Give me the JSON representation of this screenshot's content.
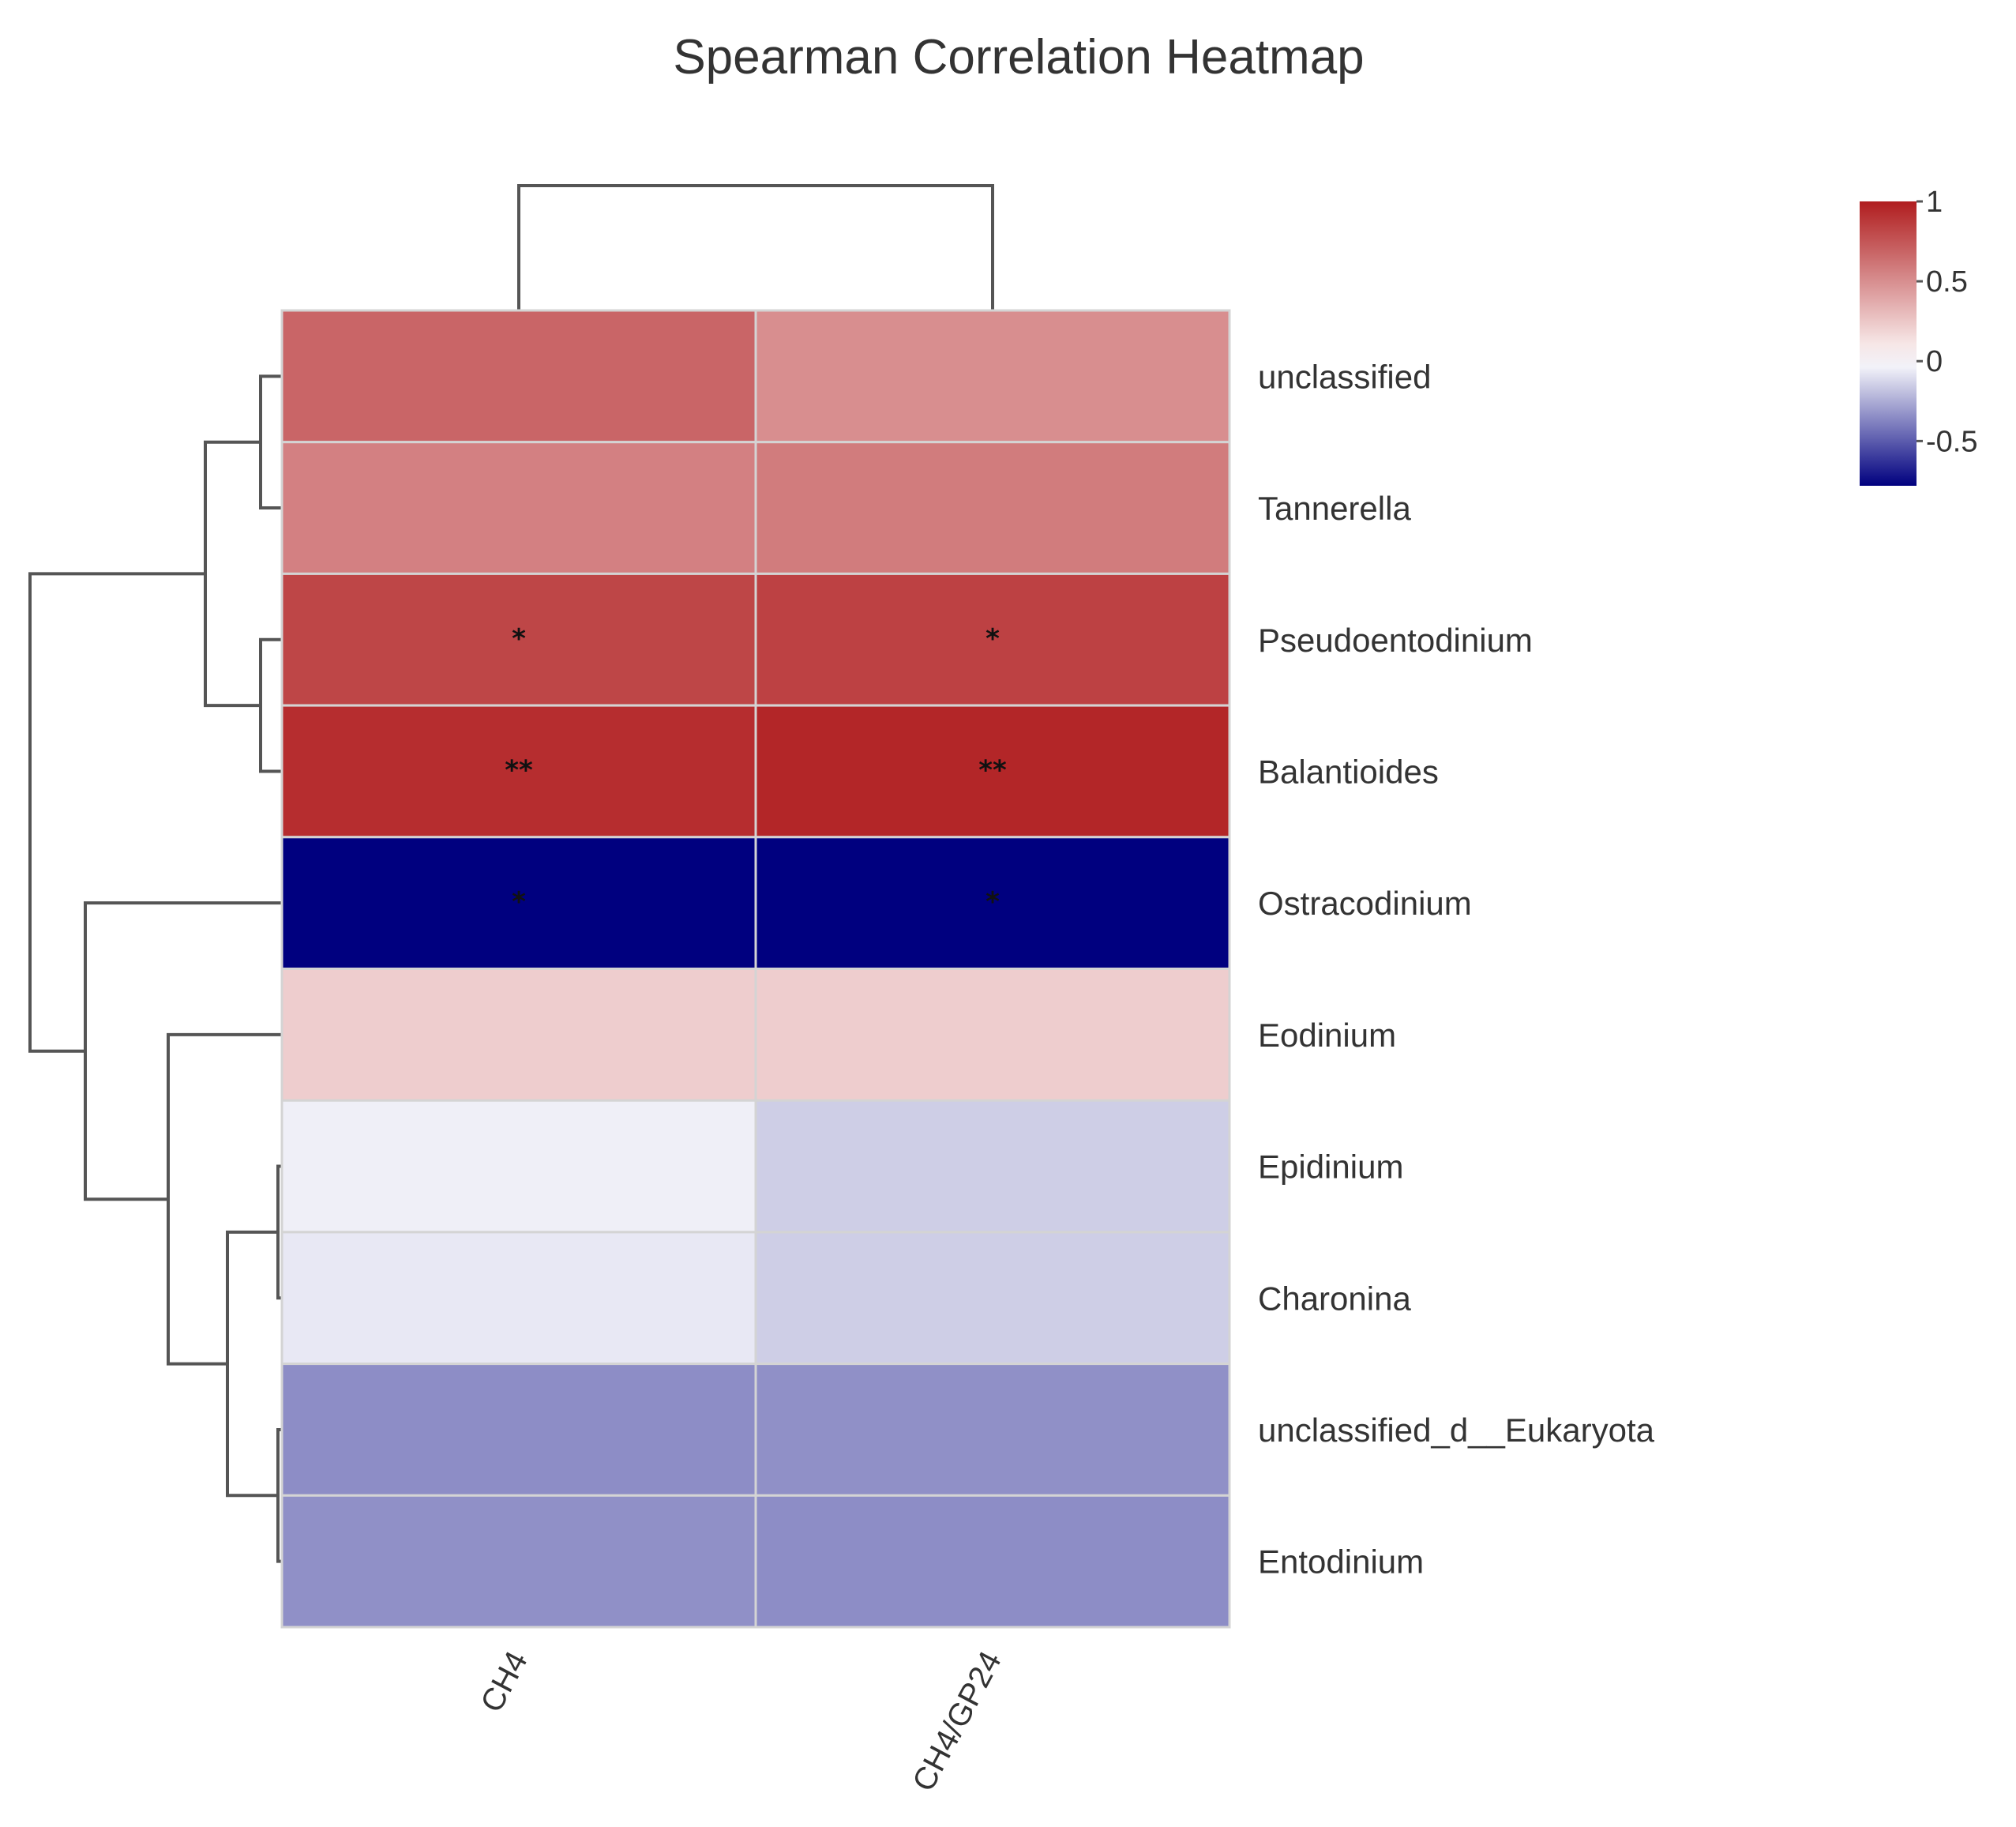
{
  "chart_data": {
    "type": "heatmap",
    "title": "Spearman Correlation Heatmap",
    "columns": [
      "CH4",
      "CH4/GP24"
    ],
    "rows": [
      "unclassified",
      "Tannerella",
      "Pseudoentodinium",
      "Balantioides",
      "Ostracodinium",
      "Eodinium",
      "Epidinium",
      "Charonina",
      "unclassified_d__Eukaryota",
      "Entodinium"
    ],
    "values": [
      [
        0.68,
        0.5
      ],
      [
        0.56,
        0.58
      ],
      [
        0.82,
        0.84
      ],
      [
        0.93,
        0.96
      ],
      [
        -0.78,
        -0.78
      ],
      [
        0.22,
        0.22
      ],
      [
        -0.05,
        -0.15
      ],
      [
        -0.07,
        -0.15
      ],
      [
        -0.35,
        -0.34
      ],
      [
        -0.34,
        -0.35
      ]
    ],
    "significance": [
      [
        "",
        ""
      ],
      [
        "",
        ""
      ],
      [
        "*",
        "*"
      ],
      [
        "**",
        "**"
      ],
      [
        "*",
        "*"
      ],
      [
        "",
        ""
      ],
      [
        "",
        ""
      ],
      [
        "",
        ""
      ],
      [
        "",
        ""
      ],
      [
        "",
        ""
      ]
    ],
    "legend": {
      "min": -0.78,
      "max": 1,
      "ticks": [
        1,
        0.5,
        0,
        -0.5
      ],
      "tick_labels": [
        "1",
        "0.5",
        "0",
        "-0.5"
      ],
      "colors": {
        "low": "#00007f",
        "mid": "#ffffff",
        "high": "#b01d1f"
      }
    },
    "row_dendrogram": "hierarchical clustering of rows",
    "col_dendrogram": "hierarchical clustering of columns"
  }
}
